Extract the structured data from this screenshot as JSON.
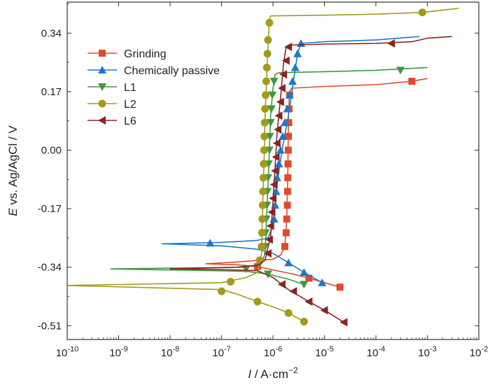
{
  "chart_data": {
    "type": "line",
    "xlabel": {
      "italic": "I",
      "rest": " / A·cm",
      "sup": "−2"
    },
    "ylabel": {
      "italic": "E",
      "rest": " vs. Ag/AgCl / V"
    },
    "x_scale": "log",
    "xlim": [
      1e-10,
      0.01
    ],
    "ylim": [
      -0.55,
      0.43
    ],
    "x_ticks": [
      {
        "value": 1e-10,
        "base": "10",
        "exp": "-10"
      },
      {
        "value": 1e-09,
        "base": "10",
        "exp": "-9"
      },
      {
        "value": 1e-08,
        "base": "10",
        "exp": "-8"
      },
      {
        "value": 1e-07,
        "base": "10",
        "exp": "-7"
      },
      {
        "value": 1e-06,
        "base": "10",
        "exp": "-6"
      },
      {
        "value": 1e-05,
        "base": "10",
        "exp": "-5"
      },
      {
        "value": 0.0001,
        "base": "10",
        "exp": "-4"
      },
      {
        "value": 0.001,
        "base": "10",
        "exp": "-3"
      },
      {
        "value": 0.01,
        "base": "10",
        "exp": "-2"
      }
    ],
    "y_ticks": [
      {
        "value": 0.34,
        "label": "0.34"
      },
      {
        "value": 0.17,
        "label": "0.17"
      },
      {
        "value": 0.0,
        "label": "0.00"
      },
      {
        "value": -0.17,
        "label": "-0.17"
      },
      {
        "value": -0.34,
        "label": "-0.34"
      },
      {
        "value": -0.51,
        "label": "-0.51"
      }
    ],
    "legend_position": "top-left",
    "grid": false,
    "series": [
      {
        "name": "Grinding",
        "color": "#e04a2c",
        "marker": "square",
        "points": [
          [
            2e-05,
            -0.398
          ],
          [
            1e-05,
            -0.385
          ],
          [
            5e-06,
            -0.372
          ],
          [
            2.5e-06,
            -0.36
          ],
          [
            1e-06,
            -0.348
          ],
          [
            5e-07,
            -0.338
          ],
          [
            2e-07,
            -0.333
          ],
          [
            5e-08,
            -0.33
          ],
          [
            2e-07,
            -0.325
          ],
          [
            5e-07,
            -0.32
          ],
          [
            1e-06,
            -0.317
          ],
          [
            1.4e-06,
            -0.305
          ],
          [
            1.7e-06,
            -0.28
          ],
          [
            1.85e-06,
            -0.2
          ],
          [
            1.95e-06,
            -0.05
          ],
          [
            2e-06,
            0.1
          ],
          [
            2.1e-06,
            0.17
          ],
          [
            2.3e-06,
            0.18
          ],
          [
            1e-05,
            0.185
          ],
          [
            0.0001,
            0.19
          ],
          [
            0.0005,
            0.2
          ],
          [
            0.001,
            0.208
          ]
        ],
        "markers": [
          [
            2e-05,
            -0.398
          ],
          [
            5e-06,
            -0.372
          ],
          [
            5e-07,
            -0.338
          ],
          [
            1.7e-06,
            -0.28
          ],
          [
            1.8e-06,
            -0.24
          ],
          [
            1.85e-06,
            -0.2
          ],
          [
            1.9e-06,
            -0.16
          ],
          [
            1.92e-06,
            -0.12
          ],
          [
            1.94e-06,
            -0.08
          ],
          [
            1.96e-06,
            -0.04
          ],
          [
            1.98e-06,
            0.0
          ],
          [
            2e-06,
            0.04
          ],
          [
            2.02e-06,
            0.08
          ],
          [
            2.05e-06,
            0.12
          ],
          [
            2.1e-06,
            0.16
          ],
          [
            0.0005,
            0.2
          ]
        ]
      },
      {
        "name": "Chemically passive",
        "color": "#1f78c8",
        "marker": "triangle-up",
        "points": [
          [
            9e-06,
            -0.385
          ],
          [
            4e-06,
            -0.355
          ],
          [
            2e-06,
            -0.327
          ],
          [
            1e-06,
            -0.3
          ],
          [
            5e-07,
            -0.288
          ],
          [
            1e-07,
            -0.278
          ],
          [
            7e-09,
            -0.272
          ],
          [
            1e-07,
            -0.268
          ],
          [
            5e-07,
            -0.262
          ],
          [
            8e-07,
            -0.255
          ],
          [
            1e-06,
            -0.22
          ],
          [
            1.2e-06,
            -0.1
          ],
          [
            1.5e-06,
            0.0
          ],
          [
            2e-06,
            0.1
          ],
          [
            2.5e-06,
            0.2
          ],
          [
            3e-06,
            0.28
          ],
          [
            3.5e-06,
            0.31
          ],
          [
            1e-05,
            0.315
          ],
          [
            0.0001,
            0.32
          ],
          [
            0.0007,
            0.33
          ]
        ],
        "markers": [
          [
            9e-06,
            -0.385
          ],
          [
            4e-06,
            -0.355
          ],
          [
            2e-06,
            -0.327
          ],
          [
            6e-08,
            -0.27
          ],
          [
            1.05e-06,
            -0.2
          ],
          [
            1.1e-06,
            -0.16
          ],
          [
            1.15e-06,
            -0.12
          ],
          [
            1.2e-06,
            -0.08
          ],
          [
            1.3e-06,
            -0.04
          ],
          [
            1.4e-06,
            0.0
          ],
          [
            1.55e-06,
            0.04
          ],
          [
            1.7e-06,
            0.08
          ],
          [
            1.9e-06,
            0.12
          ],
          [
            2.1e-06,
            0.16
          ],
          [
            2.4e-06,
            0.2
          ],
          [
            2.7e-06,
            0.24
          ],
          [
            3e-06,
            0.28
          ],
          [
            3.5e-06,
            0.31
          ]
        ]
      },
      {
        "name": "L1",
        "color": "#3d9a3d",
        "marker": "triangle-down",
        "points": [
          [
            4e-06,
            -0.39
          ],
          [
            2e-06,
            -0.375
          ],
          [
            8e-07,
            -0.36
          ],
          [
            3e-07,
            -0.352
          ],
          [
            7e-10,
            -0.345
          ],
          [
            3e-07,
            -0.34
          ],
          [
            6e-07,
            -0.33
          ],
          [
            7e-07,
            -0.3
          ],
          [
            7.5e-07,
            -0.2
          ],
          [
            8e-07,
            -0.1
          ],
          [
            8.5e-07,
            0.0
          ],
          [
            9e-07,
            0.1
          ],
          [
            1e-06,
            0.18
          ],
          [
            1.1e-06,
            0.22
          ],
          [
            1.3e-06,
            0.225
          ],
          [
            1e-05,
            0.228
          ],
          [
            0.0001,
            0.232
          ],
          [
            0.001,
            0.24
          ]
        ],
        "markers": [
          [
            4e-06,
            -0.39
          ],
          [
            8e-07,
            -0.36
          ],
          [
            3e-07,
            -0.345
          ],
          [
            7e-07,
            -0.28
          ],
          [
            7.2e-07,
            -0.24
          ],
          [
            7.4e-07,
            -0.2
          ],
          [
            7.6e-07,
            -0.16
          ],
          [
            7.8e-07,
            -0.12
          ],
          [
            8e-07,
            -0.08
          ],
          [
            8.2e-07,
            -0.04
          ],
          [
            8.5e-07,
            0.0
          ],
          [
            8.7e-07,
            0.04
          ],
          [
            9e-07,
            0.08
          ],
          [
            9.3e-07,
            0.12
          ],
          [
            9.7e-07,
            0.16
          ],
          [
            1.05e-06,
            0.2
          ],
          [
            0.0003,
            0.232
          ]
        ]
      },
      {
        "name": "L2",
        "color": "#a39a1a",
        "marker": "circle",
        "points": [
          [
            4e-06,
            -0.498
          ],
          [
            2e-06,
            -0.473
          ],
          [
            1e-06,
            -0.455
          ],
          [
            5e-07,
            -0.44
          ],
          [
            2e-07,
            -0.418
          ],
          [
            1e-07,
            -0.405
          ],
          [
            1e-10,
            -0.393
          ],
          [
            1e-07,
            -0.385
          ],
          [
            3e-07,
            -0.37
          ],
          [
            5e-07,
            -0.355
          ],
          [
            6e-07,
            -0.3
          ],
          [
            6.2e-07,
            -0.2
          ],
          [
            6.5e-07,
            -0.1
          ],
          [
            6.8e-07,
            0.0
          ],
          [
            7e-07,
            0.1
          ],
          [
            7.5e-07,
            0.2
          ],
          [
            8e-07,
            0.3
          ],
          [
            8.5e-07,
            0.38
          ],
          [
            9e-07,
            0.39
          ],
          [
            1e-05,
            0.392
          ],
          [
            0.0001,
            0.395
          ],
          [
            0.0008,
            0.4
          ],
          [
            0.004,
            0.412
          ]
        ],
        "markers": [
          [
            4e-06,
            -0.498
          ],
          [
            2e-06,
            -0.473
          ],
          [
            5e-07,
            -0.44
          ],
          [
            1e-07,
            -0.41
          ],
          [
            1.5e-07,
            -0.382
          ],
          [
            5.5e-07,
            -0.32
          ],
          [
            6e-07,
            -0.28
          ],
          [
            6.1e-07,
            -0.24
          ],
          [
            6.2e-07,
            -0.2
          ],
          [
            6.3e-07,
            -0.16
          ],
          [
            6.4e-07,
            -0.12
          ],
          [
            6.5e-07,
            -0.08
          ],
          [
            6.6e-07,
            -0.04
          ],
          [
            6.7e-07,
            0.0
          ],
          [
            6.8e-07,
            0.04
          ],
          [
            6.9e-07,
            0.08
          ],
          [
            7e-07,
            0.12
          ],
          [
            7.2e-07,
            0.16
          ],
          [
            7.4e-07,
            0.2
          ],
          [
            7.6e-07,
            0.24
          ],
          [
            7.8e-07,
            0.28
          ],
          [
            8e-07,
            0.32
          ],
          [
            8.5e-07,
            0.37
          ],
          [
            0.0008,
            0.4
          ]
        ]
      },
      {
        "name": "L6",
        "color": "#8b2323",
        "marker": "triangle-left",
        "points": [
          [
            2.4e-05,
            -0.5
          ],
          [
            1e-05,
            -0.465
          ],
          [
            5e-06,
            -0.44
          ],
          [
            2e-06,
            -0.405
          ],
          [
            1e-06,
            -0.37
          ],
          [
            5e-07,
            -0.35
          ],
          [
            1e-07,
            -0.347
          ],
          [
            1e-08,
            -0.345
          ],
          [
            2e-07,
            -0.34
          ],
          [
            5e-07,
            -0.335
          ],
          [
            7e-07,
            -0.32
          ],
          [
            9e-07,
            -0.25
          ],
          [
            1e-06,
            -0.15
          ],
          [
            1.1e-06,
            -0.05
          ],
          [
            1.2e-06,
            0.05
          ],
          [
            1.4e-06,
            0.15
          ],
          [
            1.6e-06,
            0.25
          ],
          [
            1.8e-06,
            0.3
          ],
          [
            2e-06,
            0.305
          ],
          [
            1e-05,
            0.308
          ],
          [
            0.0001,
            0.31
          ],
          [
            0.0005,
            0.315
          ],
          [
            0.001,
            0.325
          ],
          [
            0.003,
            0.33
          ]
        ],
        "markers": [
          [
            2.4e-05,
            -0.5
          ],
          [
            1e-05,
            -0.465
          ],
          [
            5e-06,
            -0.44
          ],
          [
            2.5e-06,
            -0.41
          ],
          [
            1.5e-06,
            -0.39
          ],
          [
            8e-07,
            -0.3
          ],
          [
            8.5e-07,
            -0.26
          ],
          [
            9e-07,
            -0.22
          ],
          [
            9.5e-07,
            -0.18
          ],
          [
            1e-06,
            -0.14
          ],
          [
            1.05e-06,
            -0.1
          ],
          [
            1.1e-06,
            -0.06
          ],
          [
            1.15e-06,
            -0.02
          ],
          [
            1.2e-06,
            0.02
          ],
          [
            1.25e-06,
            0.06
          ],
          [
            1.3e-06,
            0.1
          ],
          [
            1.4e-06,
            0.14
          ],
          [
            1.5e-06,
            0.18
          ],
          [
            1.6e-06,
            0.22
          ],
          [
            1.8e-06,
            0.26
          ],
          [
            2e-06,
            0.3
          ],
          [
            0.0002,
            0.31
          ]
        ]
      }
    ]
  }
}
